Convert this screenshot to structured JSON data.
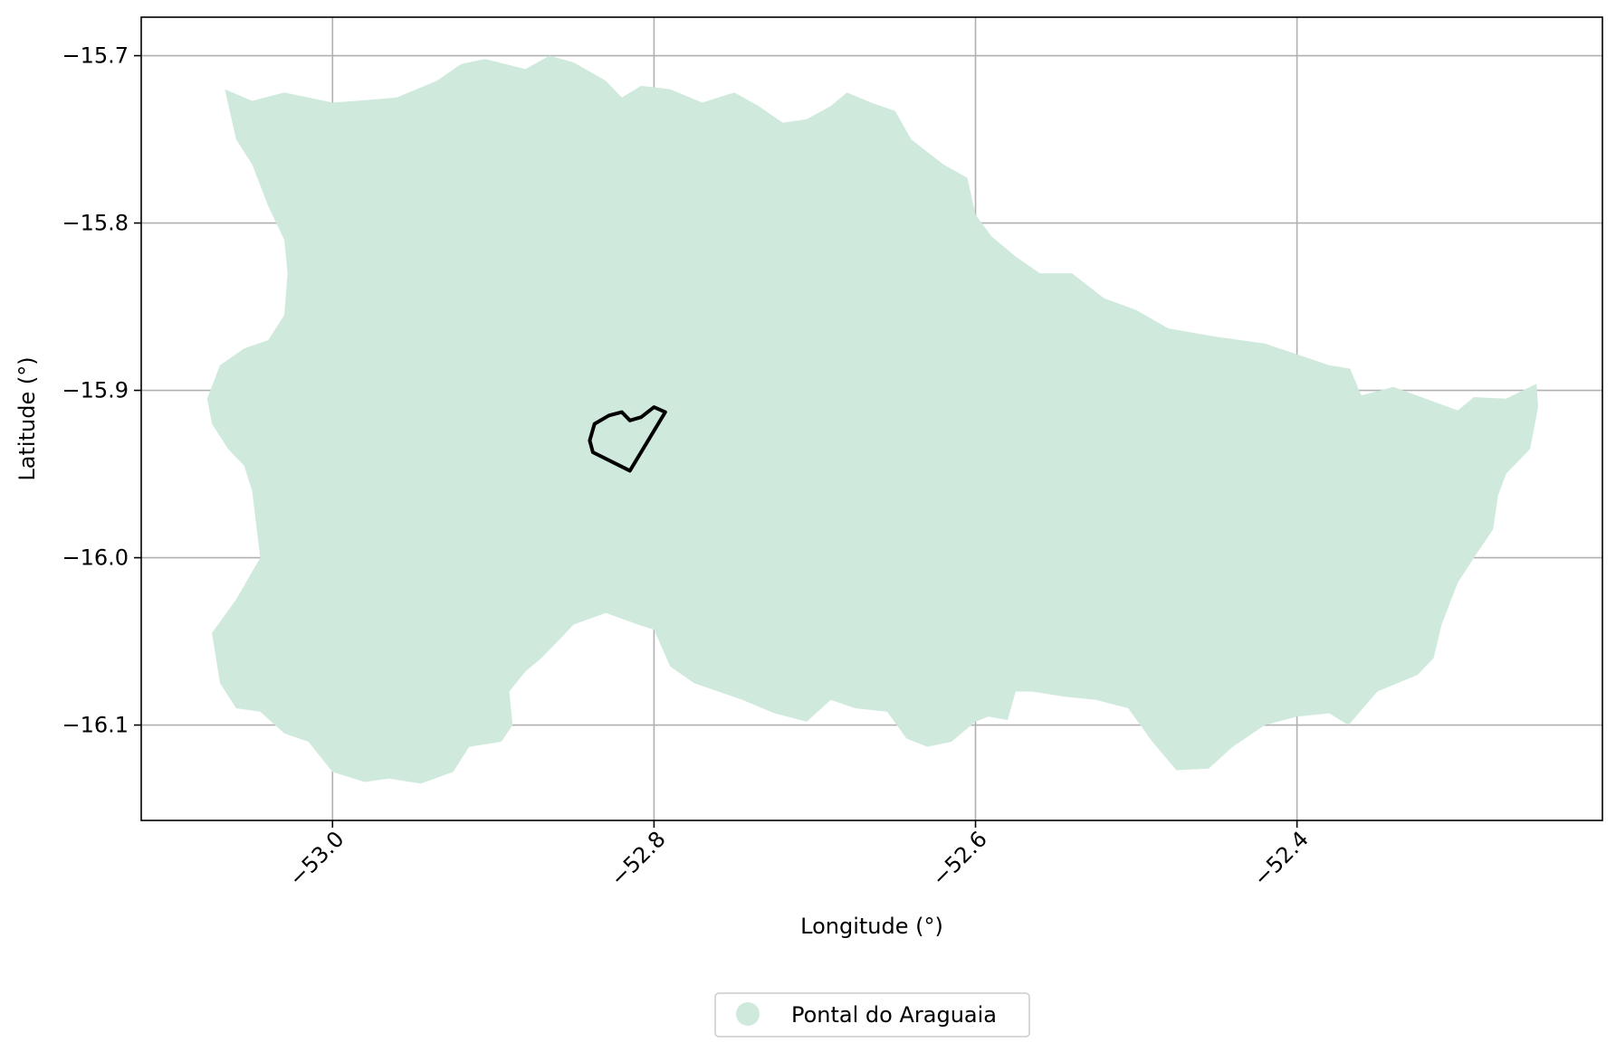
{
  "chart_data": {
    "type": "map",
    "title": "",
    "xlabel": "Longitude (°)",
    "ylabel": "Latitude (°)",
    "xlim": [
      -53.119,
      -52.21
    ],
    "ylim": [
      -16.157,
      -15.677
    ],
    "grid": true,
    "x_ticks": [
      {
        "value": -53.0,
        "label": "−53.0"
      },
      {
        "value": -52.8,
        "label": "−52.8"
      },
      {
        "value": -52.6,
        "label": "−52.6"
      },
      {
        "value": -52.4,
        "label": "−52.4"
      }
    ],
    "y_ticks": [
      {
        "value": -15.7,
        "label": "−15.7"
      },
      {
        "value": -15.8,
        "label": "−15.8"
      },
      {
        "value": -15.9,
        "label": "−15.9"
      },
      {
        "value": -16.0,
        "label": "−16.0"
      },
      {
        "value": -16.1,
        "label": "−16.1"
      }
    ],
    "legend": {
      "position": "bottom-center",
      "entries": [
        {
          "label": "Pontal do Araguaia",
          "color": "#cfeadd",
          "marker": "circle"
        }
      ]
    },
    "layers": [
      {
        "name": "Pontal do Araguaia",
        "type": "polygon",
        "fill": "#cfeadd",
        "coordinates": [
          [
            -53.067,
            -15.72
          ],
          [
            -53.05,
            -15.727
          ],
          [
            -53.03,
            -15.722
          ],
          [
            -53.0,
            -15.728
          ],
          [
            -52.985,
            -15.727
          ],
          [
            -52.96,
            -15.725
          ],
          [
            -52.935,
            -15.715
          ],
          [
            -52.92,
            -15.705
          ],
          [
            -52.905,
            -15.702
          ],
          [
            -52.88,
            -15.708
          ],
          [
            -52.865,
            -15.7
          ],
          [
            -52.85,
            -15.704
          ],
          [
            -52.83,
            -15.715
          ],
          [
            -52.82,
            -15.725
          ],
          [
            -52.808,
            -15.718
          ],
          [
            -52.79,
            -15.72
          ],
          [
            -52.77,
            -15.728
          ],
          [
            -52.75,
            -15.722
          ],
          [
            -52.735,
            -15.73
          ],
          [
            -52.72,
            -15.74
          ],
          [
            -52.705,
            -15.738
          ],
          [
            -52.69,
            -15.73
          ],
          [
            -52.68,
            -15.722
          ],
          [
            -52.665,
            -15.728
          ],
          [
            -52.65,
            -15.733
          ],
          [
            -52.64,
            -15.75
          ],
          [
            -52.62,
            -15.765
          ],
          [
            -52.605,
            -15.773
          ],
          [
            -52.6,
            -15.795
          ],
          [
            -52.59,
            -15.808
          ],
          [
            -52.575,
            -15.82
          ],
          [
            -52.56,
            -15.83
          ],
          [
            -52.54,
            -15.83
          ],
          [
            -52.52,
            -15.845
          ],
          [
            -52.5,
            -15.852
          ],
          [
            -52.48,
            -15.863
          ],
          [
            -52.45,
            -15.868
          ],
          [
            -52.42,
            -15.872
          ],
          [
            -52.395,
            -15.88
          ],
          [
            -52.38,
            -15.885
          ],
          [
            -52.367,
            -15.887
          ],
          [
            -52.36,
            -15.903
          ],
          [
            -52.34,
            -15.898
          ],
          [
            -52.32,
            -15.905
          ],
          [
            -52.3,
            -15.912
          ],
          [
            -52.29,
            -15.904
          ],
          [
            -52.27,
            -15.905
          ],
          [
            -52.251,
            -15.896
          ],
          [
            -52.25,
            -15.91
          ],
          [
            -52.255,
            -15.935
          ],
          [
            -52.27,
            -15.95
          ],
          [
            -52.275,
            -15.963
          ],
          [
            -52.278,
            -15.983
          ],
          [
            -52.29,
            -16.0
          ],
          [
            -52.3,
            -16.015
          ],
          [
            -52.31,
            -16.04
          ],
          [
            -52.315,
            -16.06
          ],
          [
            -52.325,
            -16.07
          ],
          [
            -52.35,
            -16.08
          ],
          [
            -52.368,
            -16.1
          ],
          [
            -52.38,
            -16.093
          ],
          [
            -52.4,
            -16.095
          ],
          [
            -52.42,
            -16.1
          ],
          [
            -52.44,
            -16.113
          ],
          [
            -52.455,
            -16.126
          ],
          [
            -52.475,
            -16.127
          ],
          [
            -52.49,
            -16.11
          ],
          [
            -52.505,
            -16.09
          ],
          [
            -52.525,
            -16.085
          ],
          [
            -52.545,
            -16.083
          ],
          [
            -52.565,
            -16.08
          ],
          [
            -52.575,
            -16.08
          ],
          [
            -52.58,
            -16.097
          ],
          [
            -52.592,
            -16.095
          ],
          [
            -52.6,
            -16.098
          ],
          [
            -52.615,
            -16.11
          ],
          [
            -52.63,
            -16.113
          ],
          [
            -52.643,
            -16.108
          ],
          [
            -52.655,
            -16.092
          ],
          [
            -52.675,
            -16.09
          ],
          [
            -52.69,
            -16.085
          ],
          [
            -52.705,
            -16.098
          ],
          [
            -52.725,
            -16.093
          ],
          [
            -52.745,
            -16.085
          ],
          [
            -52.76,
            -16.08
          ],
          [
            -52.775,
            -16.075
          ],
          [
            -52.79,
            -16.065
          ],
          [
            -52.8,
            -16.043
          ],
          [
            -52.81,
            -16.04
          ],
          [
            -52.83,
            -16.033
          ],
          [
            -52.85,
            -16.04
          ],
          [
            -52.86,
            -16.05
          ],
          [
            -52.87,
            -16.06
          ],
          [
            -52.88,
            -16.068
          ],
          [
            -52.89,
            -16.08
          ],
          [
            -52.888,
            -16.1
          ],
          [
            -52.895,
            -16.11
          ],
          [
            -52.915,
            -16.113
          ],
          [
            -52.925,
            -16.128
          ],
          [
            -52.945,
            -16.135
          ],
          [
            -52.965,
            -16.132
          ],
          [
            -52.98,
            -16.134
          ],
          [
            -53.0,
            -16.128
          ],
          [
            -53.015,
            -16.11
          ],
          [
            -53.03,
            -16.105
          ],
          [
            -53.045,
            -16.092
          ],
          [
            -53.06,
            -16.09
          ],
          [
            -53.07,
            -16.075
          ],
          [
            -53.075,
            -16.045
          ],
          [
            -53.06,
            -16.025
          ],
          [
            -53.045,
            -16.0
          ],
          [
            -53.05,
            -15.96
          ],
          [
            -53.055,
            -15.945
          ],
          [
            -53.065,
            -15.935
          ],
          [
            -53.075,
            -15.92
          ],
          [
            -53.078,
            -15.905
          ],
          [
            -53.07,
            -15.885
          ],
          [
            -53.055,
            -15.875
          ],
          [
            -53.04,
            -15.87
          ],
          [
            -53.03,
            -15.855
          ],
          [
            -53.028,
            -15.83
          ],
          [
            -53.03,
            -15.81
          ],
          [
            -53.04,
            -15.79
          ],
          [
            -53.05,
            -15.765
          ],
          [
            -53.06,
            -15.75
          ],
          [
            -53.067,
            -15.72
          ]
        ]
      },
      {
        "name": "",
        "type": "outline",
        "stroke": "#000000",
        "coordinates": [
          [
            -52.8,
            -15.91
          ],
          [
            -52.793,
            -15.913
          ],
          [
            -52.815,
            -15.948
          ],
          [
            -52.838,
            -15.937
          ],
          [
            -52.84,
            -15.93
          ],
          [
            -52.837,
            -15.92
          ],
          [
            -52.828,
            -15.915
          ],
          [
            -52.82,
            -15.913
          ],
          [
            -52.815,
            -15.918
          ],
          [
            -52.808,
            -15.916
          ],
          [
            -52.8,
            -15.91
          ]
        ]
      }
    ]
  }
}
